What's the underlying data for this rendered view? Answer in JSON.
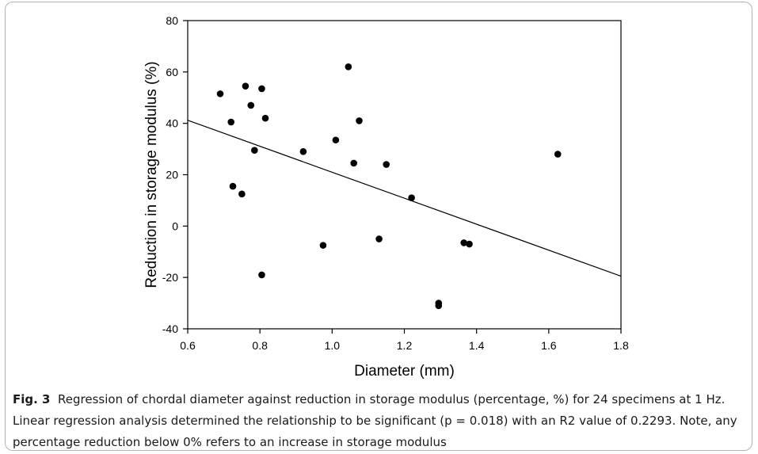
{
  "chart_data": {
    "type": "scatter",
    "title": "",
    "xlabel": "Diameter (mm)",
    "ylabel": "Reduction in storage modulus (%)",
    "xlim": [
      0.6,
      1.8
    ],
    "ylim": [
      -40,
      80
    ],
    "xticks": [
      "0.6",
      "0.8",
      "1.0",
      "1.2",
      "1.4",
      "1.6",
      "1.8"
    ],
    "yticks": [
      "-40",
      "-20",
      "0",
      "20",
      "40",
      "60",
      "80"
    ],
    "grid": false,
    "legend": "none",
    "marker_color": "#000000",
    "points": [
      {
        "x": 0.69,
        "y": 51.5
      },
      {
        "x": 0.72,
        "y": 40.5
      },
      {
        "x": 0.725,
        "y": 15.5
      },
      {
        "x": 0.75,
        "y": 12.5
      },
      {
        "x": 0.76,
        "y": 54.5
      },
      {
        "x": 0.775,
        "y": 47.0
      },
      {
        "x": 0.785,
        "y": 29.5
      },
      {
        "x": 0.805,
        "y": 53.5
      },
      {
        "x": 0.805,
        "y": -19.0
      },
      {
        "x": 0.815,
        "y": 42.0
      },
      {
        "x": 0.92,
        "y": 29.0
      },
      {
        "x": 0.975,
        "y": -7.5
      },
      {
        "x": 1.01,
        "y": 33.5
      },
      {
        "x": 1.045,
        "y": 62.0
      },
      {
        "x": 1.06,
        "y": 24.5
      },
      {
        "x": 1.075,
        "y": 41.0
      },
      {
        "x": 1.13,
        "y": -5.0
      },
      {
        "x": 1.15,
        "y": 24.0
      },
      {
        "x": 1.22,
        "y": 11.0
      },
      {
        "x": 1.295,
        "y": -30.0
      },
      {
        "x": 1.295,
        "y": -31.0
      },
      {
        "x": 1.365,
        "y": -6.5
      },
      {
        "x": 1.38,
        "y": -7.0
      },
      {
        "x": 1.625,
        "y": 28.0
      }
    ],
    "regression_line": {
      "x": [
        0.6,
        1.8
      ],
      "y": [
        41.2,
        -19.5
      ]
    }
  },
  "caption": {
    "label": "Fig. 3",
    "text": "Regression of chordal diameter against reduction in storage modulus (percentage,  %) for 24 specimens at 1 Hz. Linear regression analysis determined the relationship to be significant (p = 0.018) with an R2 value of 0.2293. Note, any percentage reduction below 0% refers to an increase in storage modulus"
  }
}
